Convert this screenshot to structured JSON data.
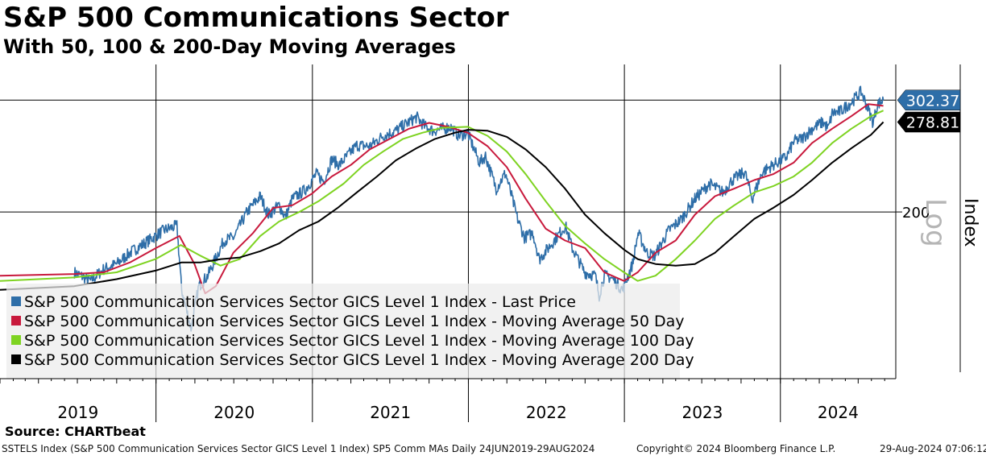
{
  "header": {
    "title": "S&P 500 Communications Sector",
    "subtitle": "With 50, 100 & 200-Day Moving Averages"
  },
  "footer": {
    "source": "Source: CHARTbeat",
    "info": "SSTELS Index (S&P 500 Communication Services Sector GICS Level 1 Index) SP5 Comm MAs  Daily 24JUN2019-29AUG2024",
    "copyright": "Copyright© 2024 Bloomberg Finance L.P.",
    "timestamp": "29-Aug-2024 07:06:12"
  },
  "chart_data": {
    "type": "line",
    "x_range": [
      "2019-01-01",
      "2024-09-27"
    ],
    "y_scale": "log",
    "y_range": [
      108,
      345
    ],
    "ylabel": "Index",
    "scale_label": "Log",
    "y_ticks": [
      200
    ],
    "year_labels": [
      "2019",
      "2020",
      "2021",
      "2022",
      "2023",
      "2024"
    ],
    "last_values": [
      {
        "label": "302.37",
        "color": "#2e6ea8",
        "value": 302.37
      },
      {
        "label": "278.81",
        "color": "#000000",
        "value": 278.81
      }
    ],
    "colors": {
      "price": "#2e6ea8",
      "ma50": "#c8193c",
      "ma100": "#7ed321",
      "ma200": "#000000"
    },
    "legend_position": "bottom-left",
    "grid": true,
    "series": [
      {
        "name": "S&P 500 Communication Services Sector GICS Level 1 Index - Last Price",
        "key": "price",
        "points": [
          [
            "2019-06-24",
            160
          ],
          [
            "2019-08-01",
            155
          ],
          [
            "2019-09-01",
            162
          ],
          [
            "2019-10-01",
            165
          ],
          [
            "2019-11-01",
            172
          ],
          [
            "2019-12-15",
            180
          ],
          [
            "2020-01-20",
            187
          ],
          [
            "2020-02-19",
            190
          ],
          [
            "2020-03-01",
            150
          ],
          [
            "2020-03-23",
            130
          ],
          [
            "2020-04-10",
            152
          ],
          [
            "2020-05-01",
            158
          ],
          [
            "2020-06-08",
            180
          ],
          [
            "2020-07-01",
            182
          ],
          [
            "2020-08-01",
            200
          ],
          [
            "2020-09-01",
            212
          ],
          [
            "2020-09-20",
            198
          ],
          [
            "2020-10-15",
            205
          ],
          [
            "2020-10-30",
            196
          ],
          [
            "2020-11-15",
            210
          ],
          [
            "2020-12-15",
            217
          ],
          [
            "2021-01-10",
            230
          ],
          [
            "2021-01-28",
            224
          ],
          [
            "2021-02-15",
            243
          ],
          [
            "2021-03-05",
            238
          ],
          [
            "2021-04-15",
            256
          ],
          [
            "2021-05-15",
            255
          ],
          [
            "2021-06-15",
            265
          ],
          [
            "2021-07-15",
            270
          ],
          [
            "2021-08-15",
            279
          ],
          [
            "2021-09-02",
            284
          ],
          [
            "2021-09-20",
            275
          ],
          [
            "2021-10-10",
            270
          ],
          [
            "2021-11-01",
            272
          ],
          [
            "2021-11-20",
            274
          ],
          [
            "2021-12-10",
            265
          ],
          [
            "2021-12-30",
            268
          ],
          [
            "2022-01-27",
            240
          ],
          [
            "2022-02-10",
            246
          ],
          [
            "2022-03-07",
            218
          ],
          [
            "2022-03-29",
            231
          ],
          [
            "2022-04-25",
            196
          ],
          [
            "2022-05-12",
            182
          ],
          [
            "2022-06-01",
            185
          ],
          [
            "2022-06-16",
            168
          ],
          [
            "2022-07-01",
            173
          ],
          [
            "2022-08-16",
            190
          ],
          [
            "2022-09-01",
            175
          ],
          [
            "2022-09-30",
            160
          ],
          [
            "2022-10-25",
            158
          ],
          [
            "2022-11-03",
            147
          ],
          [
            "2022-11-15",
            158
          ],
          [
            "2022-12-01",
            157
          ],
          [
            "2022-12-28",
            150
          ],
          [
            "2023-01-20",
            165
          ],
          [
            "2023-02-02",
            185
          ],
          [
            "2023-02-23",
            172
          ],
          [
            "2023-03-13",
            170
          ],
          [
            "2023-04-15",
            187
          ],
          [
            "2023-05-15",
            195
          ],
          [
            "2023-06-15",
            210
          ],
          [
            "2023-07-19",
            222
          ],
          [
            "2023-08-20",
            215
          ],
          [
            "2023-09-10",
            225
          ],
          [
            "2023-10-10",
            232
          ],
          [
            "2023-10-27",
            210
          ],
          [
            "2023-11-20",
            232
          ],
          [
            "2023-12-15",
            238
          ],
          [
            "2024-01-15",
            245
          ],
          [
            "2024-02-02",
            260
          ],
          [
            "2024-02-20",
            262
          ],
          [
            "2024-03-15",
            272
          ],
          [
            "2024-04-10",
            279
          ],
          [
            "2024-04-22",
            272
          ],
          [
            "2024-05-01",
            288
          ],
          [
            "2024-05-20",
            290
          ],
          [
            "2024-06-15",
            300
          ],
          [
            "2024-07-08",
            312
          ],
          [
            "2024-07-25",
            292
          ],
          [
            "2024-08-05",
            278
          ],
          [
            "2024-08-15",
            298
          ],
          [
            "2024-08-29",
            302.37
          ]
        ]
      },
      {
        "name": "S&P 500 Communication Services Sector GICS Level 1 Index - Moving Average 50 Day",
        "key": "ma50",
        "points": [
          [
            "2019-01-01",
            158
          ],
          [
            "2019-06-24",
            159
          ],
          [
            "2019-09-01",
            160
          ],
          [
            "2019-11-01",
            166
          ],
          [
            "2020-01-01",
            175
          ],
          [
            "2020-02-25",
            183
          ],
          [
            "2020-03-31",
            165
          ],
          [
            "2020-04-25",
            148
          ],
          [
            "2020-05-20",
            152
          ],
          [
            "2020-06-30",
            172
          ],
          [
            "2020-08-15",
            185
          ],
          [
            "2020-10-01",
            203
          ],
          [
            "2020-11-15",
            205
          ],
          [
            "2020-12-31",
            214
          ],
          [
            "2021-02-15",
            228
          ],
          [
            "2021-04-01",
            238
          ],
          [
            "2021-05-15",
            252
          ],
          [
            "2021-07-01",
            262
          ],
          [
            "2021-08-15",
            272
          ],
          [
            "2021-10-01",
            278
          ],
          [
            "2021-11-15",
            274
          ],
          [
            "2021-12-31",
            268
          ],
          [
            "2022-02-15",
            255
          ],
          [
            "2022-04-01",
            236
          ],
          [
            "2022-05-15",
            210
          ],
          [
            "2022-07-01",
            188
          ],
          [
            "2022-08-15",
            180
          ],
          [
            "2022-10-01",
            175
          ],
          [
            "2022-11-15",
            160
          ],
          [
            "2022-12-31",
            155
          ],
          [
            "2023-02-01",
            160
          ],
          [
            "2023-03-15",
            172
          ],
          [
            "2023-05-01",
            180
          ],
          [
            "2023-06-15",
            198
          ],
          [
            "2023-08-01",
            212
          ],
          [
            "2023-09-15",
            218
          ],
          [
            "2023-11-01",
            225
          ],
          [
            "2023-12-15",
            230
          ],
          [
            "2024-02-01",
            240
          ],
          [
            "2024-03-15",
            258
          ],
          [
            "2024-05-01",
            272
          ],
          [
            "2024-06-15",
            285
          ],
          [
            "2024-07-25",
            298
          ],
          [
            "2024-08-29",
            296
          ]
        ]
      },
      {
        "name": "S&P 500 Communication Services Sector GICS Level 1 Index - Moving Average 100 Day",
        "key": "ma100",
        "points": [
          [
            "2019-01-01",
            155
          ],
          [
            "2019-06-24",
            157
          ],
          [
            "2019-10-01",
            160
          ],
          [
            "2019-12-31",
            168
          ],
          [
            "2020-02-28",
            177
          ],
          [
            "2020-04-15",
            170
          ],
          [
            "2020-05-31",
            164
          ],
          [
            "2020-07-15",
            168
          ],
          [
            "2020-09-01",
            183
          ],
          [
            "2020-10-15",
            193
          ],
          [
            "2020-12-01",
            200
          ],
          [
            "2021-01-15",
            208
          ],
          [
            "2021-03-15",
            222
          ],
          [
            "2021-05-01",
            238
          ],
          [
            "2021-06-15",
            250
          ],
          [
            "2021-08-01",
            262
          ],
          [
            "2021-09-15",
            268
          ],
          [
            "2021-11-01",
            273
          ],
          [
            "2021-12-31",
            274
          ],
          [
            "2022-02-15",
            265
          ],
          [
            "2022-04-01",
            250
          ],
          [
            "2022-05-15",
            230
          ],
          [
            "2022-07-01",
            208
          ],
          [
            "2022-08-15",
            190
          ],
          [
            "2022-10-01",
            178
          ],
          [
            "2022-11-15",
            168
          ],
          [
            "2022-12-31",
            160
          ],
          [
            "2023-02-01",
            155
          ],
          [
            "2023-03-15",
            158
          ],
          [
            "2023-05-01",
            168
          ],
          [
            "2023-06-15",
            180
          ],
          [
            "2023-08-01",
            195
          ],
          [
            "2023-09-15",
            205
          ],
          [
            "2023-11-01",
            215
          ],
          [
            "2023-12-15",
            220
          ],
          [
            "2024-02-01",
            228
          ],
          [
            "2024-03-15",
            240
          ],
          [
            "2024-05-01",
            258
          ],
          [
            "2024-06-15",
            272
          ],
          [
            "2024-07-31",
            285
          ],
          [
            "2024-08-29",
            291
          ]
        ]
      },
      {
        "name": "S&P 500 Communication Services Sector GICS Level 1 Index - Moving Average 200 Day",
        "key": "ma200",
        "points": [
          [
            "2019-01-01",
            150
          ],
          [
            "2019-06-24",
            152
          ],
          [
            "2019-10-01",
            156
          ],
          [
            "2019-12-31",
            161
          ],
          [
            "2020-03-01",
            166
          ],
          [
            "2020-04-15",
            166
          ],
          [
            "2020-06-01",
            168
          ],
          [
            "2020-07-15",
            169
          ],
          [
            "2020-09-01",
            173
          ],
          [
            "2020-10-15",
            178
          ],
          [
            "2020-12-01",
            187
          ],
          [
            "2021-01-15",
            193
          ],
          [
            "2021-03-01",
            203
          ],
          [
            "2021-04-15",
            215
          ],
          [
            "2021-06-01",
            228
          ],
          [
            "2021-07-15",
            242
          ],
          [
            "2021-09-01",
            253
          ],
          [
            "2021-10-15",
            262
          ],
          [
            "2021-11-30",
            268
          ],
          [
            "2021-12-31",
            271
          ],
          [
            "2022-02-15",
            270
          ],
          [
            "2022-04-01",
            264
          ],
          [
            "2022-05-15",
            252
          ],
          [
            "2022-07-01",
            236
          ],
          [
            "2022-08-15",
            218
          ],
          [
            "2022-10-01",
            198
          ],
          [
            "2022-11-15",
            185
          ],
          [
            "2022-12-31",
            174
          ],
          [
            "2023-02-01",
            168
          ],
          [
            "2023-03-15",
            165
          ],
          [
            "2023-05-01",
            164
          ],
          [
            "2023-06-15",
            165
          ],
          [
            "2023-08-01",
            172
          ],
          [
            "2023-09-15",
            183
          ],
          [
            "2023-11-01",
            195
          ],
          [
            "2023-12-15",
            203
          ],
          [
            "2024-02-01",
            213
          ],
          [
            "2024-03-15",
            225
          ],
          [
            "2024-05-01",
            240
          ],
          [
            "2024-06-15",
            253
          ],
          [
            "2024-07-31",
            266
          ],
          [
            "2024-08-29",
            278.81
          ]
        ]
      }
    ]
  }
}
